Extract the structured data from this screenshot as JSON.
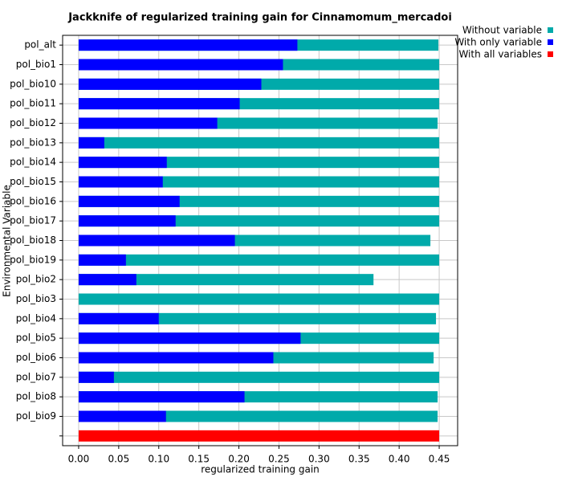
{
  "chart_data": {
    "type": "bar",
    "orientation": "horizontal",
    "title": "Jackknife of regularized training gain for Cinnamomum_mercadoi",
    "xlabel": "regularized training gain",
    "ylabel": "Environmental Variable",
    "categories": [
      "pol_alt",
      "pol_bio1",
      "pol_bio10",
      "pol_bio11",
      "pol_bio12",
      "pol_bio13",
      "pol_bio14",
      "pol_bio15",
      "pol_bio16",
      "pol_bio17",
      "pol_bio18",
      "pol_bio19",
      "pol_bio2",
      "pol_bio3",
      "pol_bio4",
      "pol_bio5",
      "pol_bio6",
      "pol_bio7",
      "pol_bio8",
      "pol_bio9",
      null
    ],
    "series": [
      {
        "name": "Without variable",
        "color": "#00aaaa",
        "values": [
          0.449,
          0.45,
          0.45,
          0.45,
          0.448,
          0.45,
          0.45,
          0.45,
          0.45,
          0.45,
          0.439,
          0.45,
          0.368,
          0.45,
          0.446,
          0.45,
          0.443,
          0.45,
          0.448,
          0.448,
          null
        ]
      },
      {
        "name": "With only variable",
        "color": "#0000ff",
        "values": [
          0.273,
          0.255,
          0.228,
          0.201,
          0.173,
          0.032,
          0.11,
          0.105,
          0.126,
          0.121,
          0.195,
          0.059,
          0.072,
          0.0,
          0.1,
          0.277,
          0.243,
          0.044,
          0.207,
          0.109,
          null
        ]
      },
      {
        "name": "With all variables",
        "color": "#ff0000",
        "values": [
          null,
          null,
          null,
          null,
          null,
          null,
          null,
          null,
          null,
          null,
          null,
          null,
          null,
          null,
          null,
          null,
          null,
          null,
          null,
          null,
          0.45
        ]
      }
    ],
    "xlim": [
      -0.02,
      0.473
    ],
    "xticks": [
      {
        "value": 0,
        "label": "0.00"
      },
      {
        "value": 0.05,
        "label": "0.05"
      },
      {
        "value": 0.1,
        "label": "0.10"
      },
      {
        "value": 0.15,
        "label": "0.15"
      },
      {
        "value": 0.2,
        "label": "0.20"
      },
      {
        "value": 0.25,
        "label": "0.25"
      },
      {
        "value": 0.3,
        "label": "0.30"
      },
      {
        "value": 0.35,
        "label": "0.35"
      },
      {
        "value": 0.4,
        "label": "0.40"
      },
      {
        "value": 0.45,
        "label": "0.45"
      }
    ],
    "grid": true,
    "legend": "upper right"
  }
}
